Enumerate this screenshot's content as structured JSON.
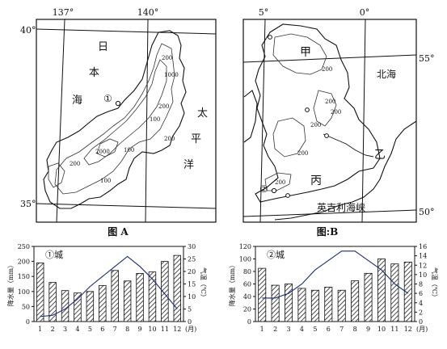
{
  "map_a": {
    "caption": "图 A",
    "lon_labels": [
      "137°",
      "140°"
    ],
    "lat_labels": [
      "40°",
      "35°"
    ],
    "sea_labels": [
      "日",
      "本",
      "海",
      "太",
      "平",
      "洋"
    ],
    "marker": "①",
    "contours": [
      "200",
      "1000",
      "200",
      "100",
      "200",
      "2000",
      "100",
      "200",
      "100"
    ]
  },
  "map_b": {
    "caption": "图:B",
    "lon_labels": [
      "5°",
      "0°"
    ],
    "lat_labels": [
      "55°",
      "50°"
    ],
    "region_labels": {
      "jia": "甲",
      "yi": "乙",
      "bing": "丙",
      "north_sea": "北海",
      "channel": "英吉利海峡"
    },
    "marker": "②",
    "contours": [
      "200",
      "200",
      "200",
      "200",
      "200",
      "200"
    ]
  },
  "chart_data": [
    {
      "type": "bar",
      "title": "①城",
      "categories": [
        "1",
        "2",
        "3",
        "4",
        "5",
        "6",
        "7",
        "8",
        "9",
        "10",
        "11",
        "12"
      ],
      "series": [
        {
          "name": "降水量",
          "values": [
            195,
            130,
            103,
            95,
            100,
            120,
            170,
            135,
            160,
            165,
            200,
            220
          ]
        },
        {
          "name": "气温",
          "values": [
            2,
            2.5,
            5,
            9,
            14,
            18,
            22,
            26,
            22,
            17,
            11,
            5
          ]
        }
      ],
      "xlabel": "(月)",
      "ylabel": "降水量（mm）",
      "y2label": "气温（℃）",
      "ylim": [
        0,
        250
      ],
      "y2lim": [
        0,
        30
      ],
      "yticks": [
        "0",
        "50",
        "100",
        "150",
        "200",
        "250"
      ],
      "y2ticks": [
        "0",
        "5",
        "10",
        "15",
        "20",
        "25",
        "30"
      ]
    },
    {
      "type": "bar",
      "title": "②城",
      "categories": [
        "1",
        "2",
        "3",
        "4",
        "5",
        "6",
        "7",
        "8",
        "9",
        "10",
        "11",
        "12"
      ],
      "series": [
        {
          "name": "降水量",
          "values": [
            85,
            58,
            60,
            53,
            50,
            55,
            50,
            65,
            77,
            100,
            92,
            95
          ]
        },
        {
          "name": "气温",
          "values": [
            5,
            5,
            6,
            8,
            11,
            13,
            15,
            15,
            13,
            11,
            8,
            6
          ]
        }
      ],
      "xlabel": "(月)",
      "ylabel": "降水量（mm）",
      "y2label": "气温（℃）",
      "ylim": [
        0,
        120
      ],
      "y2lim": [
        0,
        16
      ],
      "yticks": [
        "0",
        "20",
        "40",
        "60",
        "80",
        "100",
        "120"
      ],
      "y2ticks": [
        "0",
        "2",
        "4",
        "6",
        "8",
        "10",
        "12",
        "14",
        "16"
      ]
    }
  ]
}
